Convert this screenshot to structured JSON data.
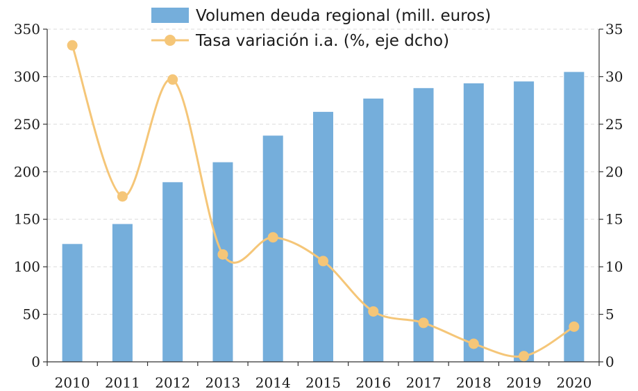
{
  "chart_data": {
    "type": "bar+line",
    "categories": [
      "2010",
      "2011",
      "2012",
      "2013",
      "2014",
      "2015",
      "2016",
      "2017",
      "2018",
      "2019",
      "2020"
    ],
    "series": [
      {
        "name": "Volumen deuda regional (mill. euros)",
        "kind": "bar",
        "axis": "left",
        "values": [
          124,
          145,
          189,
          210,
          238,
          263,
          277,
          288,
          293,
          295,
          305
        ]
      },
      {
        "name": "Tasa variación i.a. (%, eje dcho)",
        "kind": "line",
        "axis": "right",
        "smooth": true,
        "values": [
          33.3,
          17.4,
          29.7,
          11.3,
          13.1,
          10.6,
          5.3,
          4.1,
          1.9,
          0.6,
          3.7
        ]
      }
    ],
    "ylim_left": [
      0,
      350
    ],
    "ylim_right": [
      0,
      35
    ],
    "yticks_left": [
      0,
      50,
      100,
      150,
      200,
      250,
      300,
      350
    ],
    "yticks_right": [
      0,
      5,
      10,
      15,
      20,
      25,
      30,
      35
    ],
    "grid": true,
    "legend_position": "top-center",
    "colors": {
      "bar": "#75aedb",
      "line": "#f5c678",
      "marker": "#f5c678"
    }
  }
}
